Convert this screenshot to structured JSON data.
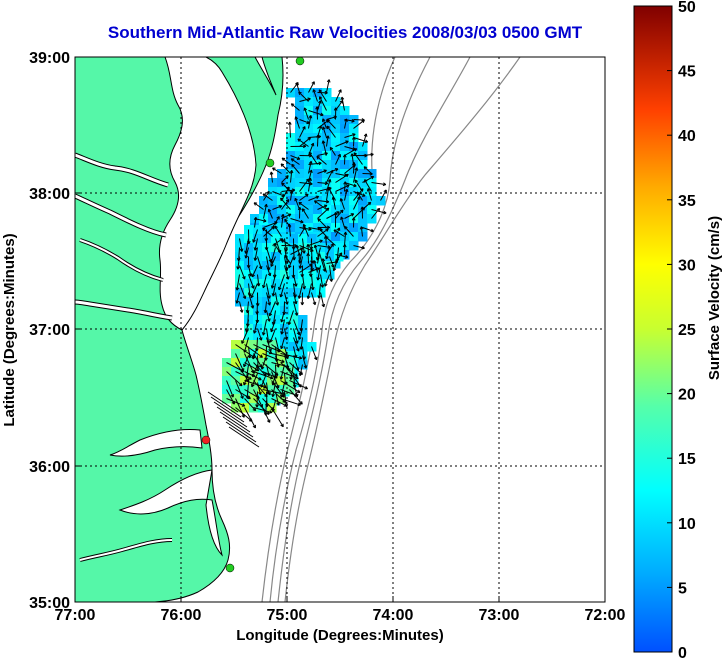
{
  "title": "Southern Mid-Atlantic Raw Velocities 2008/03/03 0500 GMT",
  "xlabel": "Longitude (Degrees:Minutes)",
  "ylabel": "Latitude (Degrees:Minutes)",
  "colorbar_label": "Surface Velocity (cm/s)",
  "x_ticks": [
    "77:00",
    "76:00",
    "75:00",
    "74:00",
    "73:00",
    "72:00"
  ],
  "y_ticks": [
    "39:00",
    "38:00",
    "37:00",
    "36:00",
    "35:00"
  ],
  "colorbar_ticks": [
    "50",
    "45",
    "40",
    "35",
    "30",
    "25",
    "20",
    "15",
    "10",
    "5",
    "0"
  ],
  "colors": {
    "land": "#55f7a8",
    "coast": "#000000",
    "bathymetry": "#888888",
    "title": "#0000d0",
    "station_active": "#22cc22",
    "station_alert": "#ee2222"
  },
  "chart_data": {
    "type": "heatmap",
    "title": "Southern Mid-Atlantic Raw Velocities 2008/03/03 0500 GMT",
    "xlabel": "Longitude (Degrees:Minutes)",
    "ylabel": "Latitude (Degrees:Minutes)",
    "xlim": [
      -77,
      -72
    ],
    "ylim": [
      35,
      39
    ],
    "grid": true,
    "colorbar": {
      "label": "Surface Velocity (cm/s)",
      "range": [
        0,
        50
      ],
      "colormap": "jet"
    },
    "stations": [
      {
        "lon": -75.1,
        "lat": 38.96,
        "status": "active"
      },
      {
        "lon": -75.15,
        "lat": 38.21,
        "status": "active"
      },
      {
        "lon": -75.7,
        "lat": 36.18,
        "status": "alert"
      },
      {
        "lon": -75.5,
        "lat": 35.25,
        "status": "active"
      }
    ],
    "velocity_field_regions": [
      {
        "name": "north",
        "speed_cm_s_range": [
          5,
          15
        ]
      },
      {
        "name": "central",
        "speed_cm_s_range": [
          5,
          15
        ]
      },
      {
        "name": "south",
        "speed_cm_s_range": [
          12,
          25
        ]
      }
    ]
  }
}
